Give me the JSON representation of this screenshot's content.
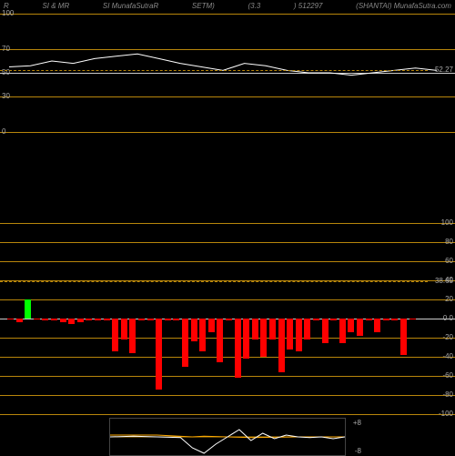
{
  "header": {
    "c1": "R",
    "c2": "SI & MR",
    "c3": "SI MunafaSutraR",
    "c4": "SETM)",
    "c5": "(3.3",
    "c6": ") 512297",
    "c7": "(SHANTAI) MunafaSutra.com"
  },
  "colors": {
    "bg": "#000000",
    "grid": "#b8860b",
    "grid_white": "#cccccc",
    "text": "#aaaaaa",
    "line": "#ffffff",
    "red": "#ff0000",
    "green": "#00ff00",
    "orange_line": "#ffaa00"
  },
  "top_chart": {
    "ylim": [
      0,
      100
    ],
    "gridlines": [
      0,
      30,
      50,
      70,
      100
    ],
    "current_value": "52.27",
    "current_y": 52.27,
    "line_points": [
      [
        0,
        55
      ],
      [
        5,
        56
      ],
      [
        10,
        60
      ],
      [
        15,
        58
      ],
      [
        20,
        62
      ],
      [
        25,
        64
      ],
      [
        30,
        66
      ],
      [
        35,
        62
      ],
      [
        40,
        58
      ],
      [
        45,
        55
      ],
      [
        50,
        52
      ],
      [
        55,
        58
      ],
      [
        60,
        56
      ],
      [
        65,
        52
      ],
      [
        70,
        50
      ],
      [
        75,
        50
      ],
      [
        80,
        48
      ],
      [
        85,
        50
      ],
      [
        90,
        52
      ],
      [
        95,
        54
      ],
      [
        100,
        52
      ]
    ]
  },
  "mid_section": {
    "label": "MR"
  },
  "bottom_chart": {
    "ylim": [
      -100,
      100
    ],
    "gridlines": [
      -100,
      -80,
      -60,
      -40,
      -20,
      0,
      20,
      40,
      60,
      80,
      100
    ],
    "right_labels": [
      "100",
      "80",
      "60",
      "40",
      "20",
      "0  0",
      "-20",
      "-40",
      "-60",
      "-80",
      "-100"
    ],
    "current_value": "38.65",
    "current_y": 38.65,
    "bars": [
      {
        "x": 1,
        "v": 0,
        "c": "red"
      },
      {
        "x": 2,
        "v": -4,
        "c": "red"
      },
      {
        "x": 3,
        "v": 20,
        "c": "green"
      },
      {
        "x": 4,
        "v": 0,
        "c": "red"
      },
      {
        "x": 5,
        "v": -2,
        "c": "red"
      },
      {
        "x": 6,
        "v": -2,
        "c": "red"
      },
      {
        "x": 7,
        "v": -4,
        "c": "red"
      },
      {
        "x": 8,
        "v": -6,
        "c": "red"
      },
      {
        "x": 9,
        "v": -4,
        "c": "red"
      },
      {
        "x": 10,
        "v": -2,
        "c": "red"
      },
      {
        "x": 11,
        "v": -2,
        "c": "red"
      },
      {
        "x": 12,
        "v": -2,
        "c": "red"
      },
      {
        "x": 13,
        "v": -34,
        "c": "red"
      },
      {
        "x": 14,
        "v": -22,
        "c": "red"
      },
      {
        "x": 15,
        "v": -36,
        "c": "red"
      },
      {
        "x": 16,
        "v": -2,
        "c": "red"
      },
      {
        "x": 17,
        "v": -2,
        "c": "red"
      },
      {
        "x": 18,
        "v": -74,
        "c": "red"
      },
      {
        "x": 19,
        "v": -2,
        "c": "red"
      },
      {
        "x": 20,
        "v": -2,
        "c": "red"
      },
      {
        "x": 21,
        "v": -50,
        "c": "red"
      },
      {
        "x": 22,
        "v": -24,
        "c": "red"
      },
      {
        "x": 23,
        "v": -34,
        "c": "red"
      },
      {
        "x": 24,
        "v": -14,
        "c": "red"
      },
      {
        "x": 25,
        "v": -46,
        "c": "red"
      },
      {
        "x": 26,
        "v": -2,
        "c": "red"
      },
      {
        "x": 27,
        "v": -62,
        "c": "red"
      },
      {
        "x": 28,
        "v": -42,
        "c": "red"
      },
      {
        "x": 29,
        "v": -22,
        "c": "red"
      },
      {
        "x": 30,
        "v": -40,
        "c": "red"
      },
      {
        "x": 31,
        "v": -22,
        "c": "red"
      },
      {
        "x": 32,
        "v": -56,
        "c": "red"
      },
      {
        "x": 33,
        "v": -32,
        "c": "red"
      },
      {
        "x": 34,
        "v": -34,
        "c": "red"
      },
      {
        "x": 35,
        "v": -22,
        "c": "red"
      },
      {
        "x": 36,
        "v": -2,
        "c": "red"
      },
      {
        "x": 37,
        "v": -26,
        "c": "red"
      },
      {
        "x": 38,
        "v": -2,
        "c": "red"
      },
      {
        "x": 39,
        "v": -26,
        "c": "red"
      },
      {
        "x": 40,
        "v": -14,
        "c": "red"
      },
      {
        "x": 41,
        "v": -18,
        "c": "red"
      },
      {
        "x": 42,
        "v": -2,
        "c": "red"
      },
      {
        "x": 43,
        "v": -14,
        "c": "red"
      },
      {
        "x": 44,
        "v": -2,
        "c": "red"
      },
      {
        "x": 45,
        "v": -2,
        "c": "red"
      },
      {
        "x": 46,
        "v": -38,
        "c": "red"
      },
      {
        "x": 47,
        "v": 0,
        "c": "red"
      }
    ]
  },
  "footer_chart": {
    "high": "+8",
    "low": "-8",
    "line1": [
      [
        0,
        0.5
      ],
      [
        10,
        0.48
      ],
      [
        20,
        0.5
      ],
      [
        30,
        0.52
      ],
      [
        35,
        0.8
      ],
      [
        40,
        0.95
      ],
      [
        45,
        0.7
      ],
      [
        50,
        0.5
      ],
      [
        55,
        0.3
      ],
      [
        60,
        0.6
      ],
      [
        65,
        0.4
      ],
      [
        70,
        0.55
      ],
      [
        75,
        0.45
      ],
      [
        80,
        0.5
      ],
      [
        85,
        0.52
      ],
      [
        90,
        0.5
      ],
      [
        95,
        0.55
      ],
      [
        100,
        0.5
      ]
    ],
    "line2": [
      [
        0,
        0.45
      ],
      [
        20,
        0.45
      ],
      [
        35,
        0.5
      ],
      [
        40,
        0.48
      ],
      [
        50,
        0.5
      ],
      [
        60,
        0.52
      ],
      [
        80,
        0.5
      ],
      [
        100,
        0.5
      ]
    ]
  }
}
